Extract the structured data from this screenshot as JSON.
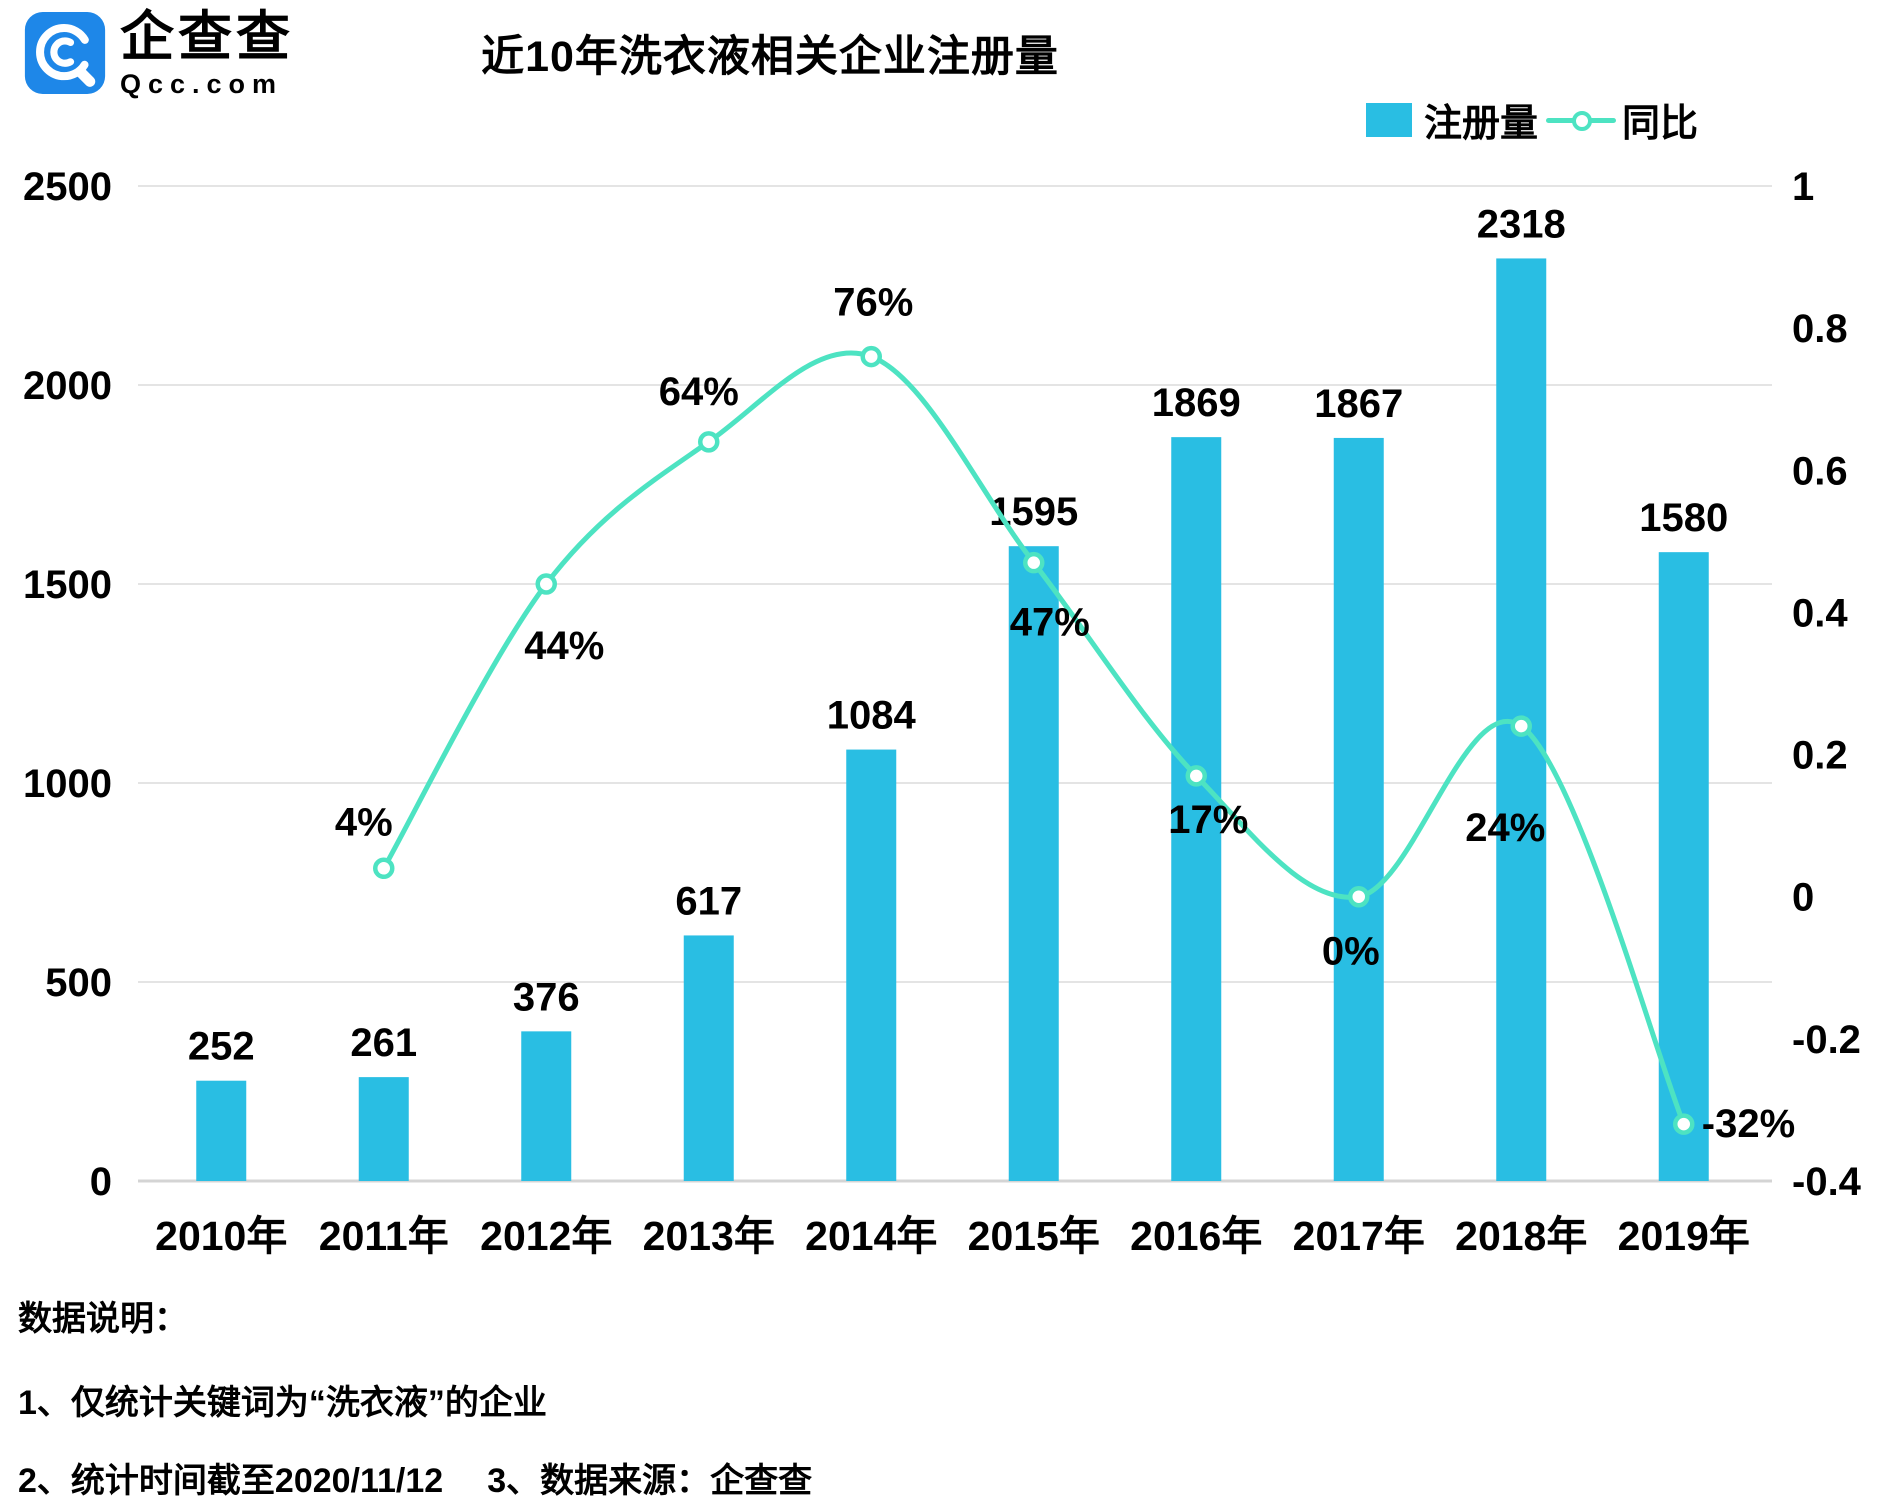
{
  "logo": {
    "brand": "企查查",
    "domain": "Qcc.com",
    "color": "#1e87e8"
  },
  "header": {
    "title": "近10年洗衣液相关企业注册量"
  },
  "legend": {
    "bar_label": "注册量",
    "line_label": "同比"
  },
  "chart_data": {
    "type": "bar+line",
    "title": "近10年洗衣液相关企业注册量",
    "categories": [
      "2010年",
      "2011年",
      "2012年",
      "2013年",
      "2014年",
      "2015年",
      "2016年",
      "2017年",
      "2018年",
      "2019年"
    ],
    "series": [
      {
        "name": "注册量",
        "type": "bar",
        "axis": "left",
        "values": [
          252,
          261,
          376,
          617,
          1084,
          1595,
          1869,
          1867,
          2318,
          1580
        ]
      },
      {
        "name": "同比",
        "type": "line",
        "axis": "right",
        "values": [
          null,
          0.04,
          0.44,
          0.64,
          0.76,
          0.47,
          0.17,
          0,
          0.24,
          -0.32
        ],
        "labels": [
          null,
          "4%",
          "44%",
          "64%",
          "76%",
          "47%",
          "17%",
          "0%",
          "24%",
          "-32%"
        ]
      }
    ],
    "left_axis": {
      "min": 0,
      "max": 2500,
      "ticks": [
        0,
        500,
        1000,
        1500,
        2000,
        2500
      ],
      "tick_labels": [
        "0",
        "500",
        "1000",
        "1500",
        "2000",
        "2500"
      ]
    },
    "right_axis": {
      "min": -0.4,
      "max": 1,
      "ticks": [
        1,
        0.8,
        0.6,
        0.4,
        0.2,
        0,
        -0.2,
        -0.4
      ],
      "tick_labels": [
        "1",
        "0.8",
        "0.6",
        "0.4",
        "0.2",
        "0",
        "-0.2",
        "-0.4"
      ]
    },
    "grid": true,
    "legend_position": "top-right",
    "colors": {
      "bar": "#29bee3",
      "line": "#4de3c2",
      "grid": "#e4e4e4",
      "axis_line": "#d4d4d4",
      "text": "#000000"
    }
  },
  "notes": {
    "heading": "数据说明：",
    "line1": "1、仅统计关键词为“洗衣液”的企业",
    "line2": "2、统计时间截至2020/11/12",
    "line3": "3、数据来源：企查查"
  }
}
